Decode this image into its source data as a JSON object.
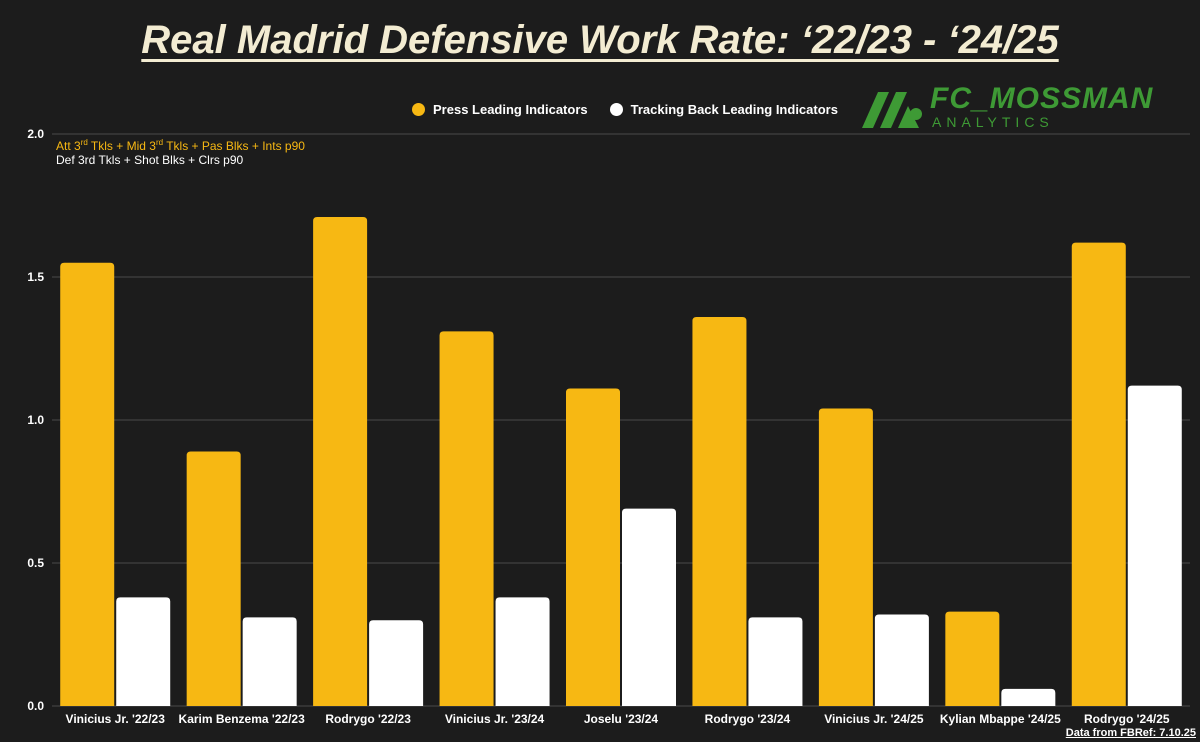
{
  "title": "Real Madrid Defensive Work Rate: ‘22/23 - ‘24/25",
  "legend": {
    "press": "Press Leading Indicators",
    "tracking": "Tracking Back Leading Indicators"
  },
  "metric_press_parts": [
    "Att 3",
    "rd",
    " Tkls + Mid 3",
    "rd",
    " Tkls + Pas Blks + Ints p90"
  ],
  "metric_tracking": "Def 3rd Tkls + Shot Blks + Clrs p90",
  "logo": {
    "name": "FC_MOSSMAN",
    "sub": "ANALYTICS"
  },
  "source": "Data from FBRef: 7.10.25",
  "colors": {
    "press": "#f7b813",
    "tracking": "#ffffff",
    "background": "#1c1c1c",
    "grid": "#4a4a4a",
    "logo": "#3e9a35"
  },
  "chart_data": {
    "type": "bar",
    "categories": [
      "Vinicius Jr. '22/23",
      "Karim Benzema '22/23",
      "Rodrygo '22/23",
      "Vinicius Jr. '23/24",
      "Joselu '23/24",
      "Rodrygo '23/24",
      "Vinicius Jr. '24/25",
      "Kylian Mbappe '24/25",
      "Rodrygo '24/25"
    ],
    "series": [
      {
        "name": "Press Leading Indicators",
        "values": [
          1.55,
          0.89,
          1.71,
          1.31,
          1.11,
          1.36,
          1.04,
          0.33,
          1.62
        ]
      },
      {
        "name": "Tracking Back Leading Indicators",
        "values": [
          0.38,
          0.31,
          0.3,
          0.38,
          0.69,
          0.31,
          0.32,
          0.06,
          1.12
        ]
      }
    ],
    "yticks": [
      "0.0",
      "0.5",
      "1.0",
      "1.5",
      "2.0"
    ],
    "ylim": [
      0,
      2.0
    ],
    "grid": true,
    "legend_position": "top-right"
  }
}
